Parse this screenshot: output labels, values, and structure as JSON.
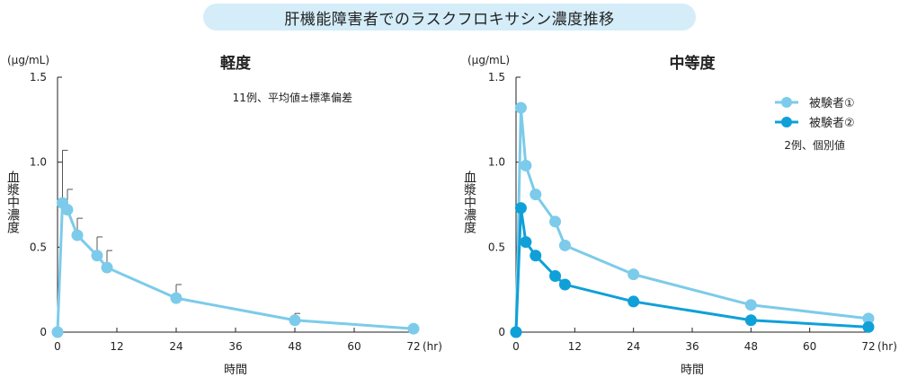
{
  "title": "肝機能障害者でのラスクフロキサシン濃度推移",
  "colors": {
    "light": "#7ccbea",
    "dark": "#0fa0d8",
    "panel_title": "#1aa7e0",
    "axis": "#222222",
    "pill": "#d4edf8"
  },
  "chart_data": [
    {
      "type": "line",
      "title": "軽度",
      "unit_label": "(μg/mL)",
      "ylabel": "血漿中濃度",
      "xlabel": "時間",
      "x_unit": "(hr)",
      "xlim": [
        0,
        72
      ],
      "ylim": [
        0,
        1.5
      ],
      "x_ticks": [
        "0",
        "12",
        "24",
        "36",
        "48",
        "60",
        "72"
      ],
      "x_tick_values": [
        0,
        12,
        24,
        36,
        48,
        60,
        72
      ],
      "y_ticks": [
        "0",
        "0.5",
        "1.0",
        "1.5"
      ],
      "y_tick_values": [
        0,
        0.5,
        1.0,
        1.5
      ],
      "note": "11例、平均値±標準偏差",
      "series": [
        {
          "name": "平均値",
          "color": "#7ccbea",
          "x": [
            0,
            1,
            2,
            4,
            8,
            10,
            24,
            48,
            72
          ],
          "y": [
            0,
            0.76,
            0.72,
            0.57,
            0.45,
            0.38,
            0.2,
            0.07,
            0.02
          ],
          "error_upper": [
            0,
            0.31,
            0.12,
            0.1,
            0.11,
            0.1,
            0.08,
            0.04,
            0
          ]
        }
      ]
    },
    {
      "type": "line",
      "title": "中等度",
      "unit_label": "(μg/mL)",
      "ylabel": "血漿中濃度",
      "xlabel": "時間",
      "x_unit": "(hr)",
      "xlim": [
        0,
        72
      ],
      "ylim": [
        0,
        1.5
      ],
      "x_ticks": [
        "0",
        "12",
        "24",
        "36",
        "48",
        "60",
        "72"
      ],
      "x_tick_values": [
        0,
        12,
        24,
        36,
        48,
        60,
        72
      ],
      "y_ticks": [
        "0",
        "0.5",
        "1.0",
        "1.5"
      ],
      "y_tick_values": [
        0,
        0.5,
        1.0,
        1.5
      ],
      "note": "2例、個別値",
      "series": [
        {
          "name": "被験者①",
          "color": "#7ccbea",
          "x": [
            0,
            1,
            2,
            4,
            8,
            10,
            24,
            48,
            72
          ],
          "y": [
            0,
            1.32,
            0.98,
            0.81,
            0.65,
            0.51,
            0.34,
            0.16,
            0.08
          ]
        },
        {
          "name": "被験者②",
          "color": "#0fa0d8",
          "x": [
            0,
            1,
            2,
            4,
            8,
            10,
            24,
            48,
            72
          ],
          "y": [
            0,
            0.73,
            0.53,
            0.45,
            0.33,
            0.28,
            0.18,
            0.07,
            0.03
          ]
        }
      ]
    }
  ]
}
